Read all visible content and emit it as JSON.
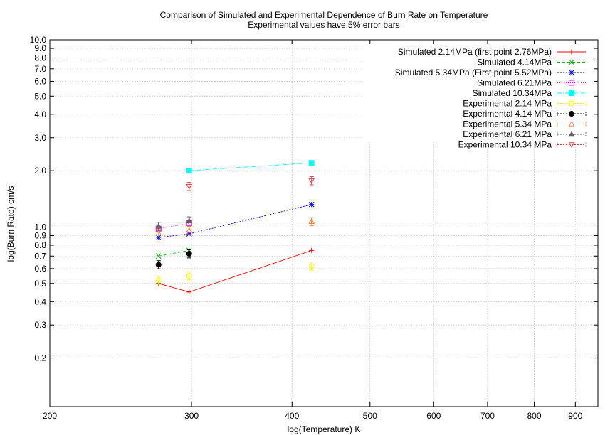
{
  "chart_data": {
    "type": "scatter",
    "title": "Comparison of Simulated and Experimental Dependence of Burn Rate on Temperature",
    "subtitle": "Experimental values have 5% error bars",
    "xlabel": "log(Temperature) K",
    "ylabel": "log(Burn Rate) cm/s",
    "xscale": "log",
    "yscale": "log",
    "xlim": [
      200,
      960
    ],
    "ylim": [
      0.11,
      10.0
    ],
    "xticks": [
      200,
      300,
      400,
      500,
      600,
      700,
      800,
      900
    ],
    "xtick_labels": [
      "200",
      "300",
      "400",
      "500",
      "600",
      "700",
      "800",
      "900"
    ],
    "yticks": [
      0.2,
      0.3,
      0.4,
      0.5,
      0.6,
      0.7,
      0.8,
      0.9,
      1.0,
      2.0,
      3.0,
      4.0,
      5.0,
      6.0,
      7.0,
      8.0,
      9.0,
      10.0
    ],
    "ytick_labels": [
      "0.2",
      "0.3",
      "0.4",
      "0.5",
      "0.6",
      "0.7",
      "0.8",
      "0.9",
      "1.0",
      "2.0",
      "3.0",
      "4.0",
      "5.0",
      "6.0",
      "7.0",
      "8.0",
      "9.0",
      "10.0"
    ],
    "grid": true,
    "legend_position": "top-right",
    "error_bar_fraction": 0.05,
    "series": [
      {
        "name": "Simulated 2.14MPa (first point 2.76MPa)",
        "kind": "simulated",
        "color": "#ff0000",
        "marker": "plus",
        "dash": "",
        "points": [
          [
            273,
            0.5
          ],
          [
            298,
            0.45
          ],
          [
            423,
            0.75
          ]
        ]
      },
      {
        "name": "Simulated 4.14MPa",
        "kind": "simulated",
        "color": "#00c000",
        "marker": "cross",
        "dash": "4,3",
        "points": [
          [
            273,
            0.7
          ],
          [
            298,
            0.75
          ]
        ]
      },
      {
        "name": "Simulated 5.34MPa (First point 5.52MPa)",
        "kind": "simulated",
        "color": "#0000ff",
        "marker": "star",
        "dash": "2,2",
        "points": [
          [
            273,
            0.88
          ],
          [
            298,
            0.92
          ],
          [
            423,
            1.32
          ]
        ]
      },
      {
        "name": "Simulated 6.21MPa",
        "kind": "simulated",
        "color": "#ff00ff",
        "marker": "box",
        "dash": "1,2",
        "points": [
          [
            273,
            0.98
          ],
          [
            298,
            1.05
          ]
        ]
      },
      {
        "name": "Simulated 10.34MPa",
        "kind": "simulated",
        "color": "#00ffff",
        "marker": "filledbox",
        "dash": "6,2,1,2",
        "points": [
          [
            298,
            2.0
          ],
          [
            423,
            2.2
          ]
        ]
      },
      {
        "name": "Experimental 2.14 MPa",
        "kind": "experimental",
        "color": "#ffff00",
        "marker": "circle",
        "dash": "",
        "points": [
          [
            273,
            0.52
          ],
          [
            298,
            0.55
          ],
          [
            423,
            0.62
          ]
        ]
      },
      {
        "name": "Experimental 4.14 MPa",
        "kind": "experimental",
        "color": "#000000",
        "marker": "filledcircle",
        "dash": "",
        "points": [
          [
            273,
            0.63
          ],
          [
            298,
            0.72
          ]
        ]
      },
      {
        "name": "Experimental 5.34 MPa",
        "kind": "experimental",
        "color": "#ff8040",
        "marker": "triangle",
        "dash": "",
        "points": [
          [
            273,
            0.93
          ],
          [
            298,
            0.96
          ],
          [
            423,
            1.07
          ]
        ]
      },
      {
        "name": "Experimental 6.21 MPa",
        "kind": "experimental",
        "color": "#606060",
        "marker": "filledtriangle",
        "dash": "",
        "points": [
          [
            273,
            1.01
          ],
          [
            298,
            1.08
          ]
        ]
      },
      {
        "name": "Experimental 10.34 MPa",
        "kind": "experimental",
        "color": "#e04040",
        "marker": "invtriangle",
        "dash": "",
        "points": [
          [
            298,
            1.65
          ],
          [
            423,
            1.77
          ]
        ]
      }
    ]
  }
}
